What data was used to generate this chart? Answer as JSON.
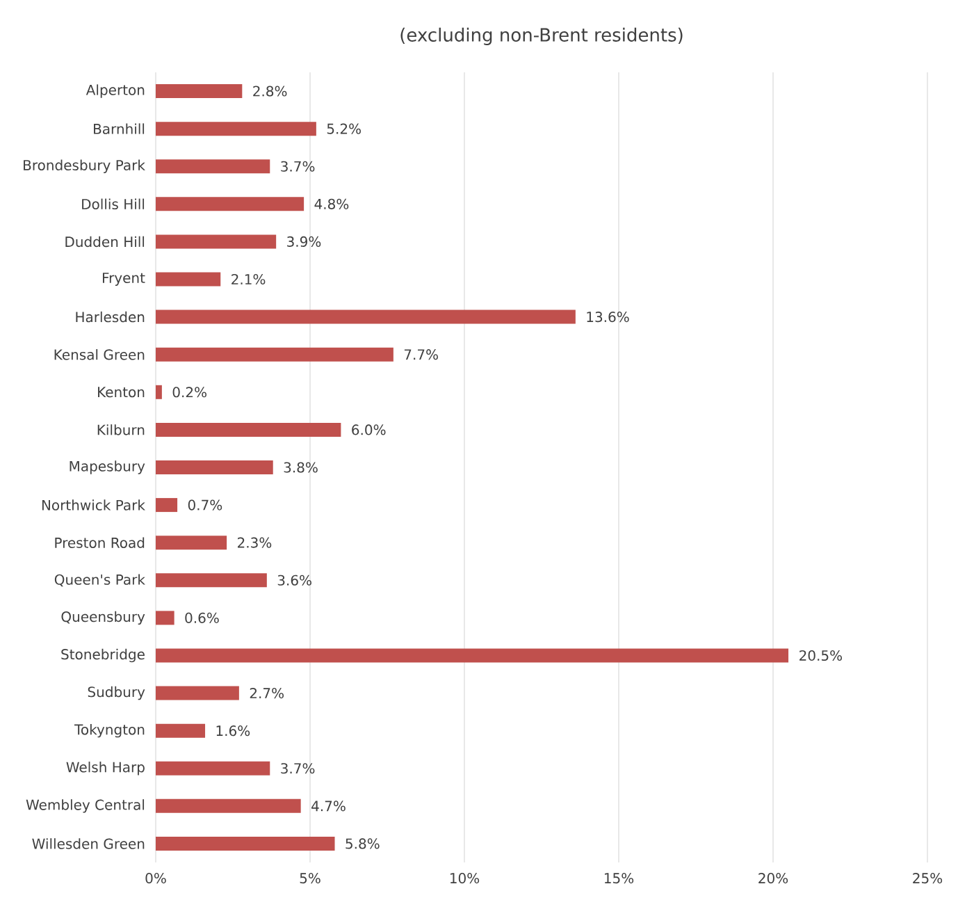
{
  "chart_data": {
    "type": "bar",
    "orientation": "horizontal",
    "title": "(excluding non-Brent residents)",
    "categories": [
      "Alperton",
      "Barnhill",
      "Brondesbury Park",
      "Dollis Hill",
      "Dudden Hill",
      "Fryent",
      "Harlesden",
      "Kensal Green",
      "Kenton",
      "Kilburn",
      "Mapesbury",
      "Northwick Park",
      "Preston Road",
      "Queen's Park",
      "Queensbury",
      "Stonebridge",
      "Sudbury",
      "Tokyngton",
      "Welsh Harp",
      "Wembley Central",
      "Willesden Green"
    ],
    "values": [
      2.8,
      5.2,
      3.7,
      4.8,
      3.9,
      2.1,
      13.6,
      7.7,
      0.2,
      6.0,
      3.8,
      0.7,
      2.3,
      3.6,
      0.6,
      20.5,
      2.7,
      1.6,
      3.7,
      4.7,
      5.8
    ],
    "value_labels": [
      "2.8%",
      "5.2%",
      "3.7%",
      "4.8%",
      "3.9%",
      "2.1%",
      "13.6%",
      "7.7%",
      "0.2%",
      "6.0%",
      "3.8%",
      "0.7%",
      "2.3%",
      "3.6%",
      "0.6%",
      "20.5%",
      "2.7%",
      "1.6%",
      "3.7%",
      "4.7%",
      "5.8%"
    ],
    "color": "#c0504d",
    "xlim": [
      0,
      25
    ],
    "xticks": [
      {
        "value": 0,
        "label": "0%"
      },
      {
        "value": 5,
        "label": "5%"
      },
      {
        "value": 10,
        "label": "10%"
      },
      {
        "value": 15,
        "label": "15%"
      },
      {
        "value": 20,
        "label": "20%"
      },
      {
        "value": 25,
        "label": "25%"
      }
    ],
    "grid": "x"
  }
}
